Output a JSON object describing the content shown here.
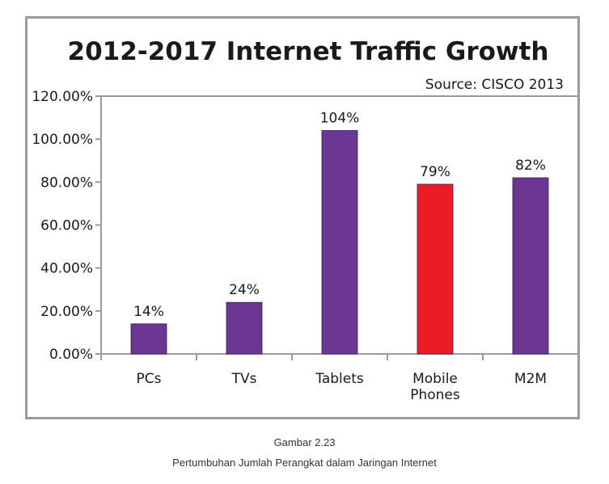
{
  "chart_data": {
    "type": "bar",
    "title": "2012-2017 Internet Traffic Growth",
    "source_note": "Source: CISCO 2013",
    "xlabel": "",
    "ylabel": "",
    "categories": [
      "PCs",
      "TVs",
      "Tablets",
      "Mobile Phones",
      "M2M"
    ],
    "category_lines": [
      [
        "PCs"
      ],
      [
        "TVs"
      ],
      [
        "Tablets"
      ],
      [
        "Mobile",
        "Phones"
      ],
      [
        "M2M"
      ]
    ],
    "values": [
      14,
      24,
      104,
      79,
      82
    ],
    "value_labels": [
      "14%",
      "24%",
      "104%",
      "79%",
      "82%"
    ],
    "ylim": [
      0,
      120
    ],
    "yticks": [
      0,
      20,
      40,
      60,
      80,
      100,
      120
    ],
    "ytick_labels": [
      "0.00%",
      "20.00%",
      "40.00%",
      "60.00%",
      "80.00%",
      "100.00%",
      "120.00%"
    ],
    "bar_colors": [
      "#6b3793",
      "#6b3793",
      "#6b3793",
      "#ec1c24",
      "#6b3793"
    ],
    "grid": false,
    "legend": "none"
  },
  "caption": {
    "number": "Gambar 2.23",
    "text": "Pertumbuhan Jumlah Perangkat dalam Jaringan Internet"
  }
}
